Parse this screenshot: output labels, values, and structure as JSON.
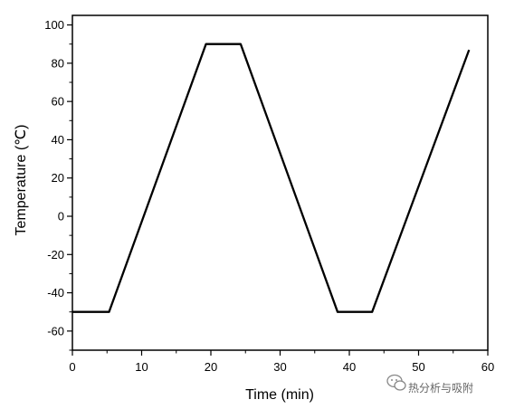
{
  "chart_data": {
    "type": "line",
    "xlabel": "Time (min)",
    "ylabel": "Temperature (℃)",
    "xlim": [
      0,
      60
    ],
    "ylim": [
      -70,
      105
    ],
    "x_ticks": [
      0,
      10,
      20,
      30,
      40,
      50,
      60
    ],
    "y_ticks": [
      -60,
      -40,
      -20,
      0,
      20,
      40,
      60,
      80,
      100
    ],
    "grid": false,
    "series": [
      {
        "x": [
          0,
          5.3,
          19.3,
          24.3,
          38.3,
          43.3,
          57.3
        ],
        "y": [
          -50,
          -50,
          90,
          90,
          -50,
          -50,
          87
        ],
        "color": "#000000"
      }
    ]
  },
  "watermark": {
    "text": "热分析与吸附",
    "icon": "wechat-icon"
  }
}
